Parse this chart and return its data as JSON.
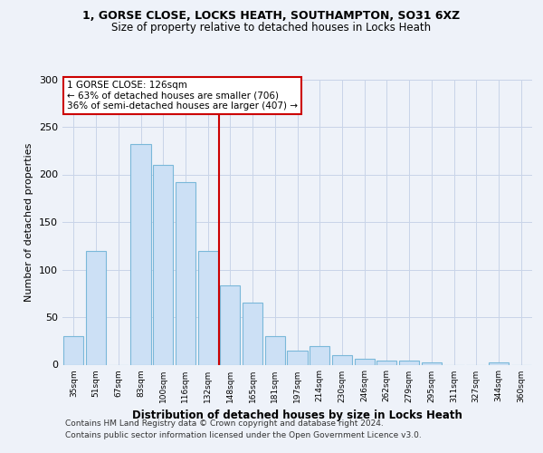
{
  "title1": "1, GORSE CLOSE, LOCKS HEATH, SOUTHAMPTON, SO31 6XZ",
  "title2": "Size of property relative to detached houses in Locks Heath",
  "xlabel": "Distribution of detached houses by size in Locks Heath",
  "ylabel": "Number of detached properties",
  "categories": [
    "35sqm",
    "51sqm",
    "67sqm",
    "83sqm",
    "100sqm",
    "116sqm",
    "132sqm",
    "148sqm",
    "165sqm",
    "181sqm",
    "197sqm",
    "214sqm",
    "230sqm",
    "246sqm",
    "262sqm",
    "279sqm",
    "295sqm",
    "311sqm",
    "327sqm",
    "344sqm",
    "360sqm"
  ],
  "values": [
    30,
    120,
    0,
    232,
    210,
    192,
    120,
    83,
    65,
    30,
    15,
    20,
    10,
    6,
    4,
    4,
    2,
    0,
    0,
    2,
    0
  ],
  "bar_color": "#cce0f5",
  "bar_edge_color": "#7ab8d9",
  "grid_color": "#c8d4e8",
  "background_color": "#eef2f9",
  "red_line_x": 6.5,
  "vline_color": "#cc0000",
  "annotation_line1": "1 GORSE CLOSE: 126sqm",
  "annotation_line2": "← 63% of detached houses are smaller (706)",
  "annotation_line3": "36% of semi-detached houses are larger (407) →",
  "annotation_box_color": "#ffffff",
  "annotation_border_color": "#cc0000",
  "ylim": [
    0,
    300
  ],
  "yticks": [
    0,
    50,
    100,
    150,
    200,
    250,
    300
  ],
  "footer1": "Contains HM Land Registry data © Crown copyright and database right 2024.",
  "footer2": "Contains public sector information licensed under the Open Government Licence v3.0."
}
